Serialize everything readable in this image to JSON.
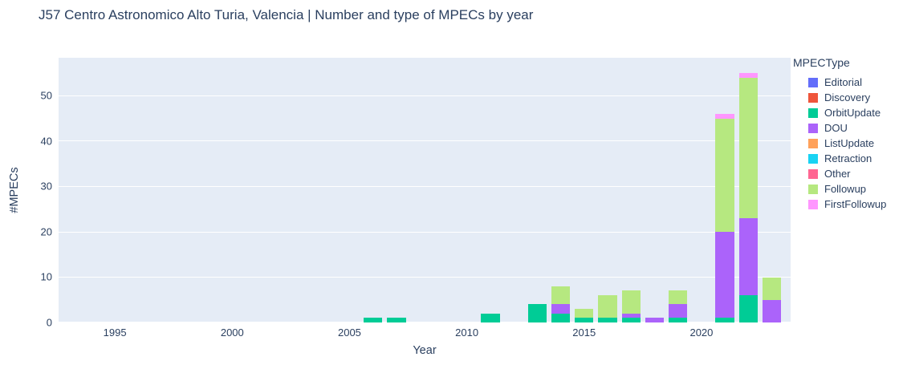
{
  "title": "J57 Centro Astronomico Alto Turia, Valencia | Number and type of MPECs by year",
  "chart_data": {
    "type": "bar",
    "stacked": true,
    "title": "J57 Centro Astronomico Alto Turia, Valencia | Number and type of MPECs by year",
    "xlabel": "Year",
    "ylabel": "#MPECs",
    "legend_title": "MPECType",
    "legend_position": "right",
    "grid": true,
    "plot_bg_color": "#e5ecf6",
    "grid_color": "#ffffff",
    "text_color": "#2a3f5f",
    "xlim": [
      1992.6,
      2023.8
    ],
    "ylim": [
      0,
      58.4
    ],
    "xticks": [
      1995,
      2000,
      2005,
      2010,
      2015,
      2020
    ],
    "yticks": [
      0,
      10,
      20,
      30,
      40,
      50
    ],
    "bar_width_years": 0.8,
    "years": [
      2006,
      2007,
      2011,
      2013,
      2014,
      2015,
      2016,
      2017,
      2018,
      2019,
      2021,
      2022,
      2023
    ],
    "series": [
      {
        "name": "Editorial",
        "color": "#636efa",
        "values": [
          0,
          0,
          0,
          0,
          0,
          0,
          0,
          0,
          0,
          0,
          0,
          0,
          0
        ]
      },
      {
        "name": "Discovery",
        "color": "#ef553b",
        "values": [
          0,
          0,
          0,
          0,
          0,
          0,
          0,
          0,
          0,
          0,
          0,
          0,
          0
        ]
      },
      {
        "name": "OrbitUpdate",
        "color": "#00cc96",
        "values": [
          1,
          1,
          2,
          4,
          2,
          1,
          1,
          1,
          0,
          1,
          1,
          6,
          0
        ]
      },
      {
        "name": "DOU",
        "color": "#ab63fa",
        "values": [
          0,
          0,
          0,
          0,
          2,
          0,
          0,
          1,
          1,
          3,
          19,
          17,
          5
        ]
      },
      {
        "name": "ListUpdate",
        "color": "#ffa15a",
        "values": [
          0,
          0,
          0,
          0,
          0,
          0,
          0,
          0,
          0,
          0,
          0,
          0,
          0
        ]
      },
      {
        "name": "Retraction",
        "color": "#19d3f3",
        "values": [
          0,
          0,
          0,
          0,
          0,
          0,
          0,
          0,
          0,
          0,
          0,
          0,
          0
        ]
      },
      {
        "name": "Other",
        "color": "#ff6692",
        "values": [
          0,
          0,
          0,
          0,
          0,
          0,
          0,
          0,
          0,
          0,
          0,
          0,
          0
        ]
      },
      {
        "name": "Followup",
        "color": "#b6e880",
        "values": [
          0,
          0,
          0,
          0,
          4,
          2,
          5,
          5,
          0,
          3,
          25,
          31,
          5
        ]
      },
      {
        "name": "FirstFollowup",
        "color": "#ff97ff",
        "values": [
          0,
          0,
          0,
          0,
          0,
          0,
          0,
          0,
          0,
          0,
          1,
          1,
          0
        ]
      }
    ],
    "totals_by_year": {
      "2006": 1,
      "2007": 1,
      "2011": 2,
      "2013": 4,
      "2014": 8,
      "2015": 3,
      "2016": 6,
      "2017": 7,
      "2018": 1,
      "2019": 7,
      "2021": 46,
      "2022": 55,
      "2023": 10
    }
  }
}
